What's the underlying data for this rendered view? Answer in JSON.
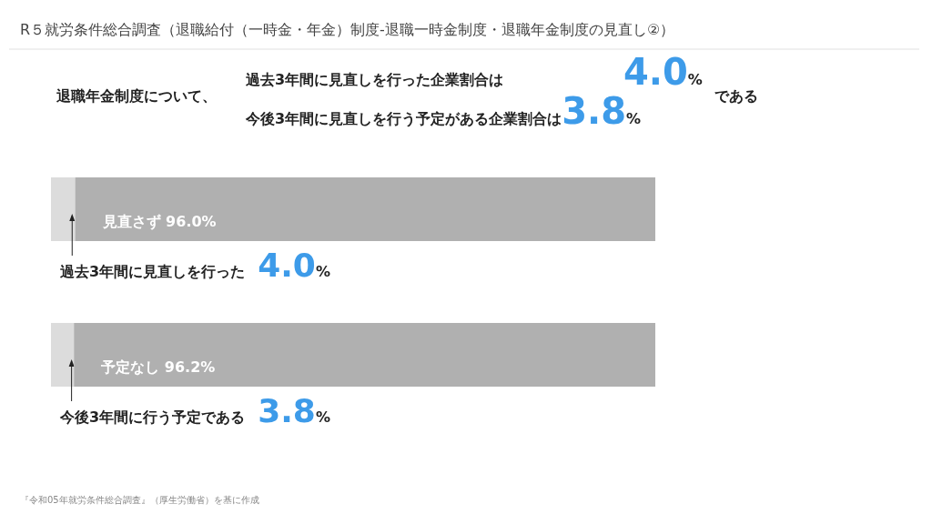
{
  "chart_data": {
    "type": "bar",
    "orientation": "horizontal",
    "stacked": true,
    "title": "R５就労条件総合調査（退職給付（一時金・年金）制度-退職一時金制度・退職年金制度の見直し②）",
    "subtitle": "退職年金制度について、",
    "annotations": [
      "過去3年間に見直しを行った企業割合は 4.0%",
      "今後3年間に見直しを行う予定がある企業割合は3.8%",
      "である",
      "『令和05年就労条件総合調査』（厚生労働省）を基に作成"
    ],
    "categories": [
      null,
      null
    ],
    "xlim": [
      0,
      100
    ],
    "series": [
      {
        "color": "#dcdcdc",
        "values": [
          4.0,
          3.8
        ],
        "value_labels": [
          "過去3年間に見直しを行った 4.0%",
          "今後3年間に行う予定である 3.8%"
        ]
      },
      {
        "color": "#b0b0b0",
        "values": [
          96.0,
          96.2
        ],
        "value_labels": [
          "見直さず  96.0%",
          "予定なし  96.2%"
        ]
      }
    ]
  }
}
